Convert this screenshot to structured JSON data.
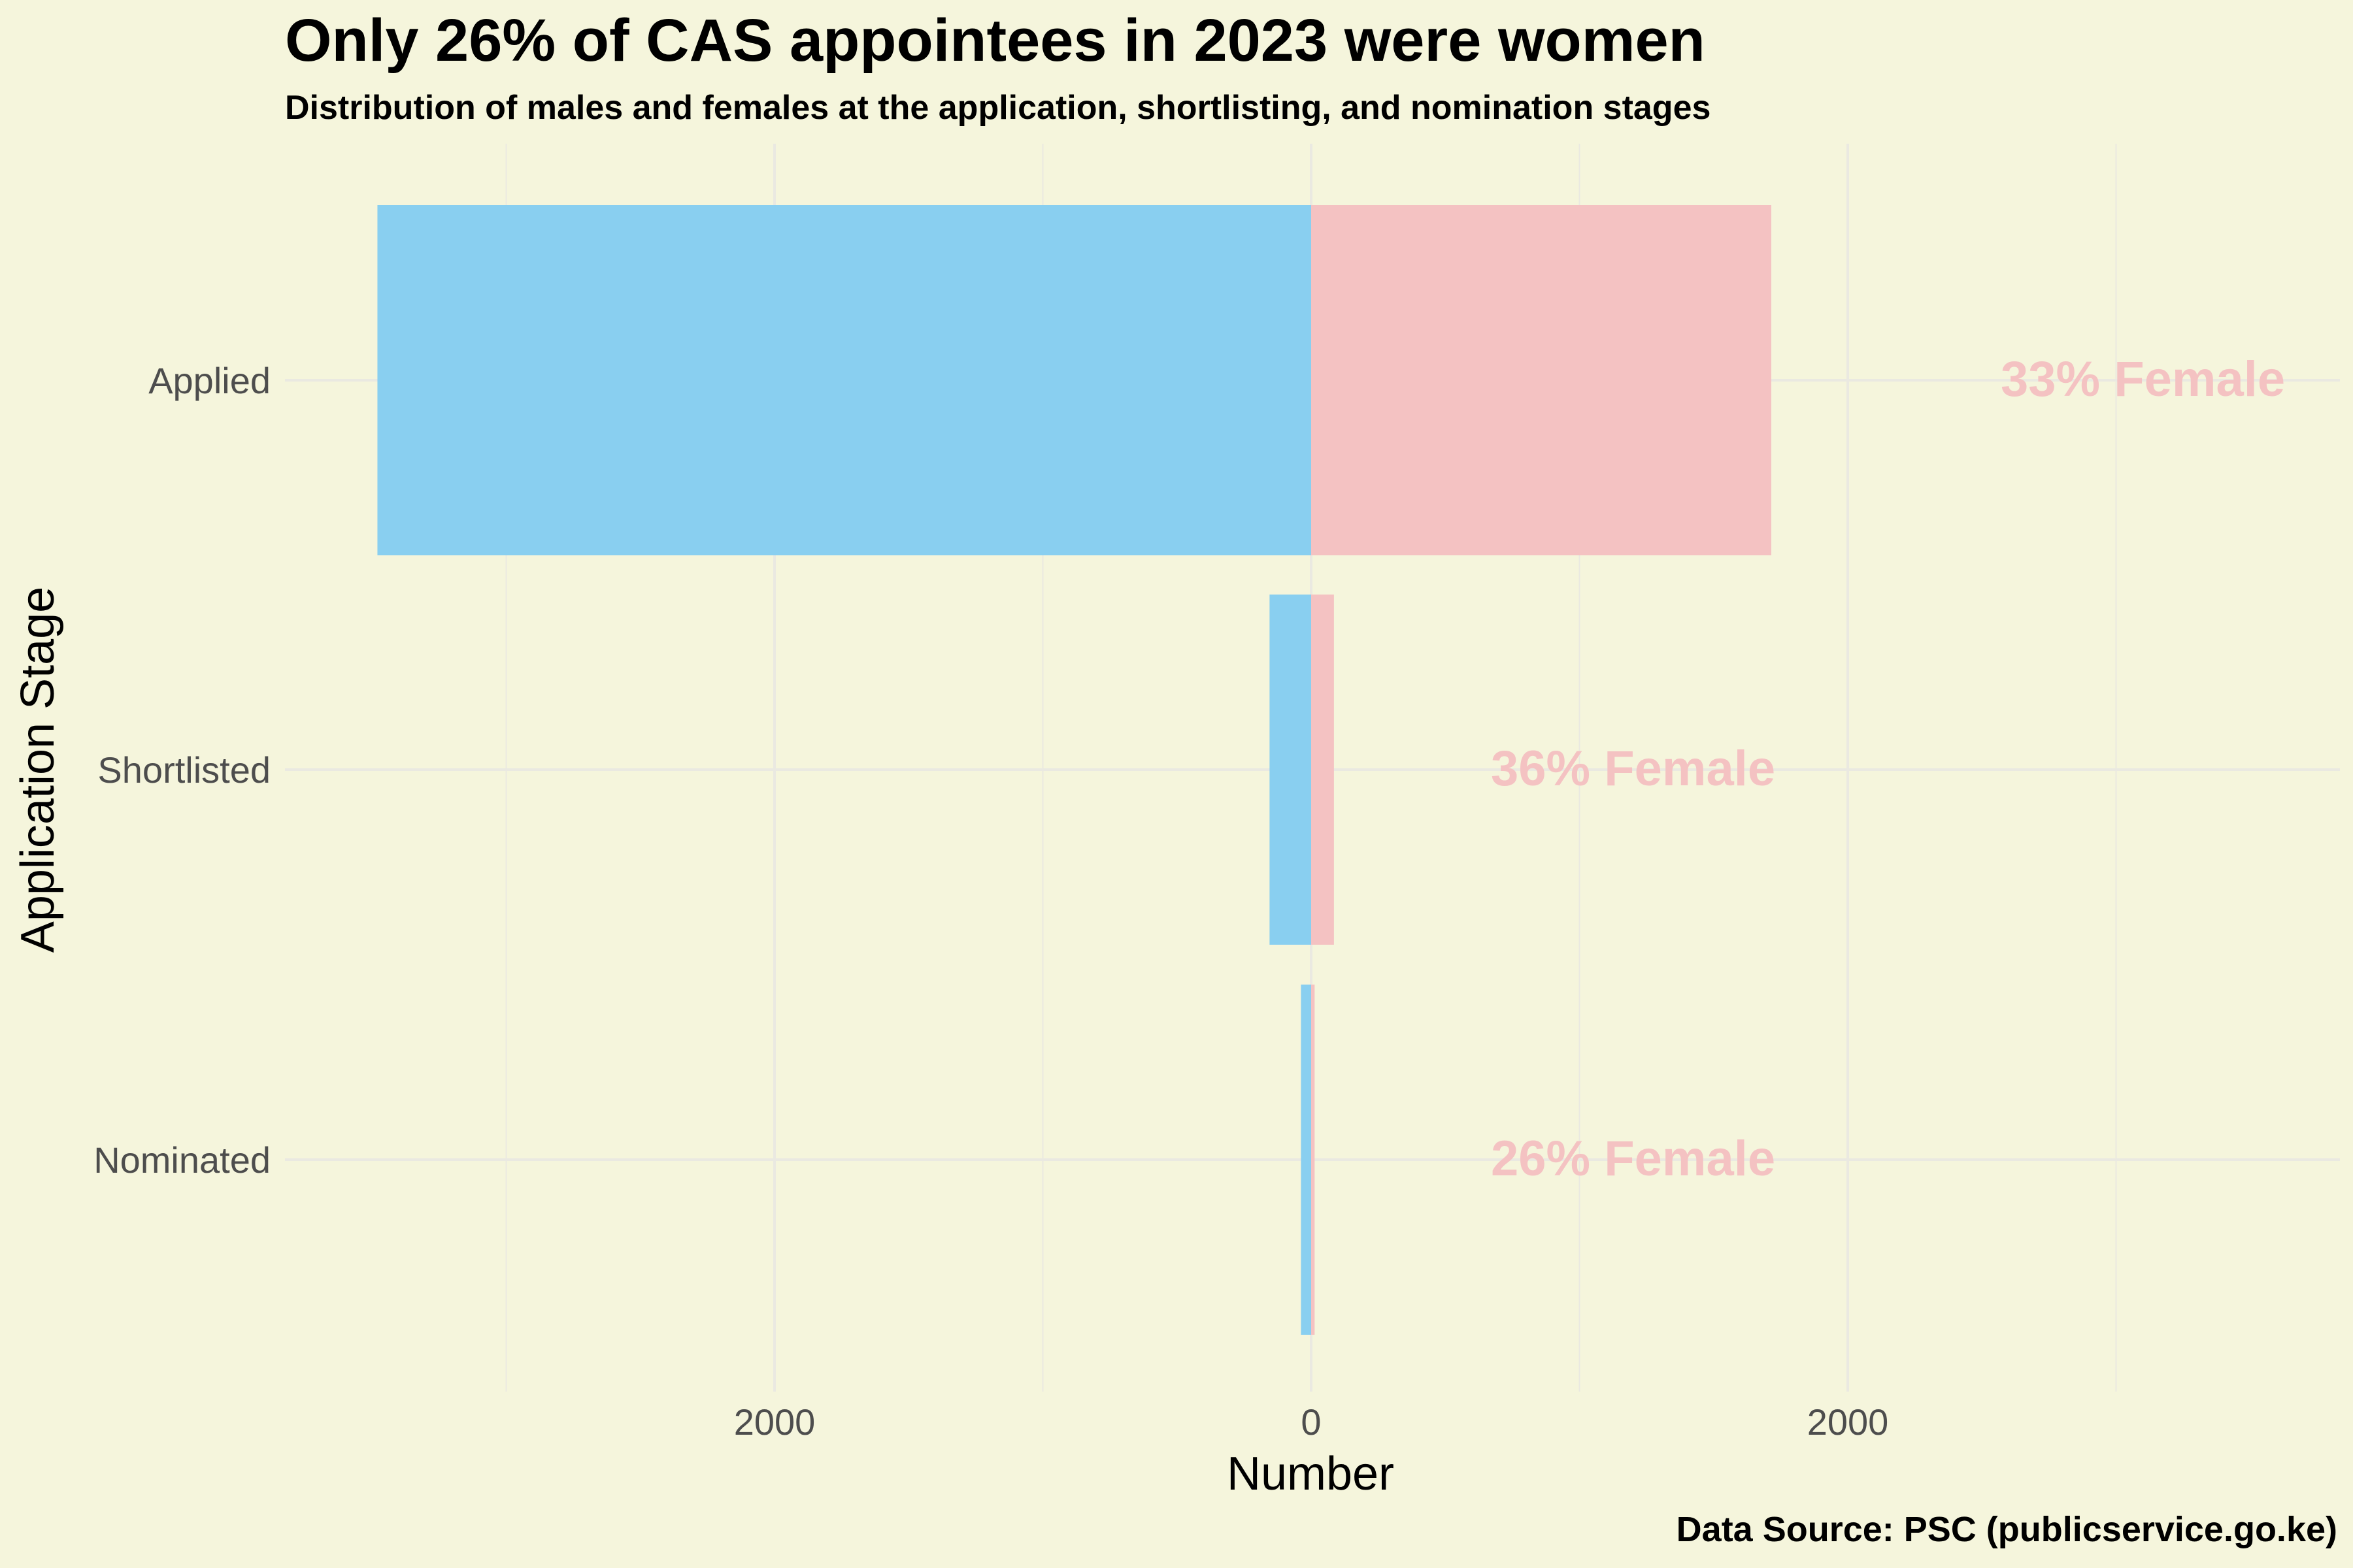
{
  "title": "Only 26% of CAS appointees in 2023 were women",
  "subtitle": "Distribution of males and females at the application, shortlisting, and nomination stages",
  "caption": "Data Source: PSC (publicservice.go.ke)",
  "chart_data": {
    "type": "bar",
    "orientation": "horizontal",
    "diverging": true,
    "xlabel": "Number",
    "ylabel": "Application Stage",
    "xlim": [
      -3800,
      3840
    ],
    "xticks": [
      -2000,
      0,
      2000
    ],
    "xtick_labels": [
      "2000",
      "0",
      "2000"
    ],
    "categories": [
      "Applied",
      "Shortlisted",
      "Nominated"
    ],
    "series": [
      {
        "color": "#89CFF0",
        "values": [
          3480,
          155,
          38
        ]
      },
      {
        "color": "#F4C2C2",
        "values": [
          1715,
          85,
          13
        ]
      }
    ],
    "annotations": [
      {
        "category": "Applied",
        "text": "33% Female",
        "x": 3100
      },
      {
        "category": "Shortlisted",
        "text": "36% Female",
        "x": 1200
      },
      {
        "category": "Nominated",
        "text": "26% Female",
        "x": 1200
      }
    ],
    "annotation_color": "#F4C2C2",
    "grid": true,
    "legend": "none"
  }
}
